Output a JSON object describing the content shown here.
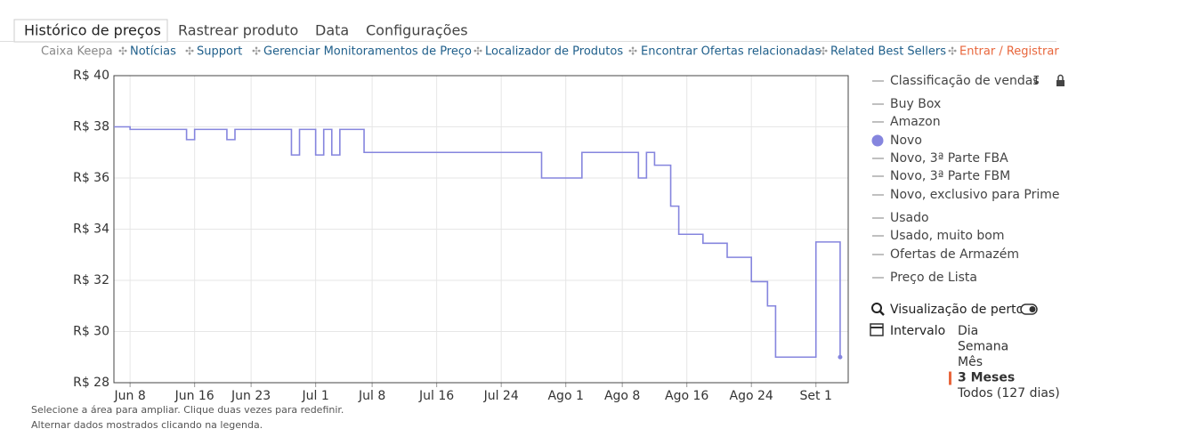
{
  "tabs": [
    "Histórico de preços",
    "Rastrear produto",
    "Data",
    "Configurações"
  ],
  "nav": {
    "muted": "Caixa Keepa",
    "links": [
      "Notícias",
      "Support",
      "Gerenciar Monitoramentos de Preço",
      "Localizador de Produtos",
      "Encontrar Ofertas relacionadas",
      "Related Best Sellers"
    ],
    "login": "Entrar / Registrar"
  },
  "chart_data": {
    "type": "line",
    "step": true,
    "grid": true,
    "x": [
      "06-06",
      "06-08",
      "06-15",
      "06-16",
      "06-20",
      "06-21",
      "06-28",
      "06-29",
      "07-01",
      "07-02",
      "07-03",
      "07-04",
      "07-07",
      "07-29",
      "08-03",
      "08-10",
      "08-11",
      "08-12",
      "08-14",
      "08-15",
      "08-18",
      "08-21",
      "08-24",
      "08-26",
      "08-27",
      "09-01",
      "09-04"
    ],
    "series": [
      {
        "name": "Novo",
        "color": "#8585de",
        "values": [
          38.0,
          37.9,
          37.5,
          37.9,
          37.5,
          37.9,
          36.9,
          37.9,
          36.9,
          37.9,
          36.9,
          37.9,
          37.0,
          36.0,
          37.0,
          36.0,
          37.0,
          36.5,
          34.9,
          33.8,
          33.45,
          32.9,
          31.95,
          31.0,
          29.0,
          33.5,
          29.0
        ]
      }
    ],
    "xlim": [
      "06-06",
      "09-05"
    ],
    "xticks": [
      {
        "value": "06-08",
        "label": "Jun 8"
      },
      {
        "value": "06-16",
        "label": "Jun 16"
      },
      {
        "value": "06-23",
        "label": "Jun 23"
      },
      {
        "value": "07-01",
        "label": "Jul 1"
      },
      {
        "value": "07-08",
        "label": "Jul 8"
      },
      {
        "value": "07-16",
        "label": "Jul 16"
      },
      {
        "value": "07-24",
        "label": "Jul 24"
      },
      {
        "value": "08-01",
        "label": "Ago 1"
      },
      {
        "value": "08-08",
        "label": "Ago 8"
      },
      {
        "value": "08-16",
        "label": "Ago 16"
      },
      {
        "value": "08-24",
        "label": "Ago 24"
      },
      {
        "value": "09-01",
        "label": "Set 1"
      }
    ],
    "ylim": [
      28,
      40
    ],
    "yticks": [
      {
        "value": 28,
        "label": "R$ 28"
      },
      {
        "value": 30,
        "label": "R$ 30"
      },
      {
        "value": 32,
        "label": "R$ 32"
      },
      {
        "value": 34,
        "label": "R$ 34"
      },
      {
        "value": 36,
        "label": "R$ 36"
      },
      {
        "value": 38,
        "label": "R$ 38"
      },
      {
        "value": 40,
        "label": "R$ 40"
      }
    ],
    "legend_before": [
      "Classificação de vendas",
      "Buy Box",
      "Amazon"
    ],
    "legend_after": [
      "Novo, 3ª Parte FBA",
      "Novo, 3ª Parte FBM",
      "Novo, exclusivo para Prime",
      "Usado",
      "Usado, muito bom",
      "Ofertas de Armazém",
      "Preço de Lista"
    ]
  },
  "tools": {
    "zoom": "Visualização de perto",
    "interval": "Intervalo",
    "interval_options": [
      "Dia",
      "Semana",
      "Mês",
      "3 Meses",
      "Todos (127 dias)"
    ],
    "interval_selected": 3
  },
  "notes": [
    "Selecione a área para ampliar. Clique duas vezes para redefinir.",
    "Alternar dados mostrados clicando na legenda."
  ]
}
